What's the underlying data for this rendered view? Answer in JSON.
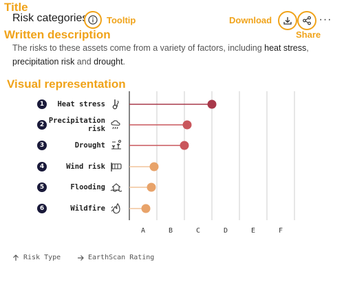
{
  "annotations": {
    "title": "Title",
    "tooltip": "Tooltip",
    "download": "Download",
    "share": "Share",
    "written_description": "Written description",
    "visual_representation": "Visual representation"
  },
  "header": {
    "title": "Risk categories",
    "more": "···"
  },
  "description": {
    "prefix": "The risks to these assets come from a variety of factors, including ",
    "heat": "heat stress",
    "comma": ",",
    "precip": "precipitation risk",
    "and": " and ",
    "drought": "drought",
    "period": "."
  },
  "colors": {
    "annotation": "#f0a31a",
    "high": "#a8384a",
    "medium": "#c9565c",
    "low": "#e8a36a",
    "low_line": "#f0c49a",
    "grid": "#cccccc",
    "badge": "#1a1a3a"
  },
  "chart_data": {
    "type": "lollipop",
    "categories": [
      "A",
      "B",
      "C",
      "D",
      "E",
      "F"
    ],
    "rows": [
      {
        "num": "1",
        "label": "Heat stress",
        "icon": "thermometer-icon",
        "value": 3.0
      },
      {
        "num": "2",
        "label": "Precipitation risk",
        "icon": "rain-cloud-icon",
        "value": 2.1
      },
      {
        "num": "3",
        "label": "Drought",
        "icon": "drought-icon",
        "value": 2.0
      },
      {
        "num": "4",
        "label": "Wind risk",
        "icon": "wind-icon",
        "value": 0.9
      },
      {
        "num": "5",
        "label": "Flooding",
        "icon": "flood-icon",
        "value": 0.8
      },
      {
        "num": "6",
        "label": "Wildfire",
        "icon": "wildfire-icon",
        "value": 0.6
      }
    ],
    "legend": {
      "y_axis": "Risk Type",
      "x_axis": "EarthScan Rating"
    }
  }
}
